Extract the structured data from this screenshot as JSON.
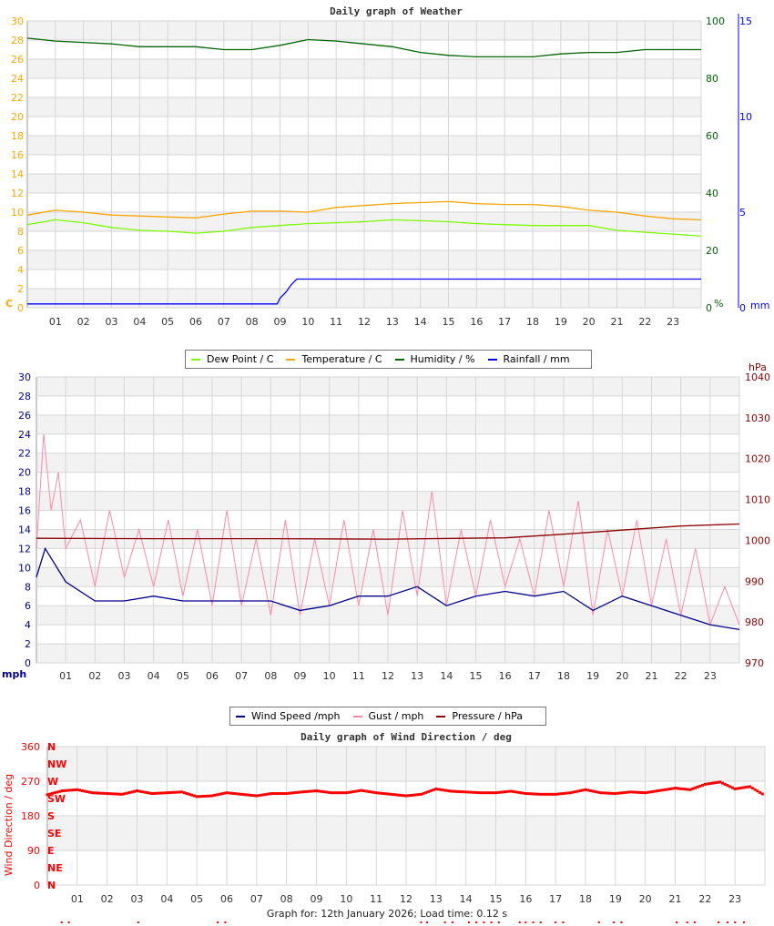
{
  "chart_data": [
    {
      "type": "line",
      "title": "Daily graph of Weather",
      "x_ticks": [
        "01",
        "02",
        "03",
        "04",
        "05",
        "06",
        "07",
        "08",
        "09",
        "10",
        "11",
        "12",
        "13",
        "14",
        "15",
        "16",
        "17",
        "18",
        "19",
        "20",
        "21",
        "22",
        "23"
      ],
      "x_range_hours": [
        0,
        24
      ],
      "grid": true,
      "y_axes": [
        {
          "side": "left",
          "unit": "C",
          "range": [
            0,
            30
          ],
          "ticks": [
            0,
            2,
            4,
            6,
            8,
            10,
            12,
            14,
            16,
            18,
            20,
            22,
            24,
            26,
            28,
            30
          ],
          "color": "#ffa500"
        },
        {
          "side": "right",
          "unit": "%",
          "range": [
            0,
            100
          ],
          "ticks": [
            0,
            20,
            40,
            60,
            80,
            100
          ],
          "color": "#006400"
        },
        {
          "side": "right",
          "unit": "mm",
          "range": [
            0,
            15
          ],
          "ticks": [
            0,
            5,
            10,
            15
          ],
          "color": "#0000ff"
        }
      ],
      "legend": "bottom",
      "series": [
        {
          "name": "Dew Point / C",
          "axis": 0,
          "color": "#7cfc00",
          "x": [
            0,
            1,
            2,
            3,
            4,
            5,
            6,
            7,
            8,
            9,
            10,
            11,
            12,
            13,
            14,
            15,
            16,
            17,
            18,
            19,
            20,
            21,
            22,
            23,
            24
          ],
          "y": [
            8.7,
            9.2,
            8.9,
            8.4,
            8.1,
            8.0,
            7.8,
            8.0,
            8.4,
            8.6,
            8.8,
            8.9,
            9.0,
            9.2,
            9.1,
            9.0,
            8.8,
            8.7,
            8.6,
            8.6,
            8.6,
            8.1,
            7.9,
            7.7,
            7.5
          ]
        },
        {
          "name": "Temperature / C",
          "axis": 0,
          "color": "#ffa500",
          "x": [
            0,
            1,
            2,
            3,
            4,
            5,
            6,
            7,
            8,
            9,
            10,
            11,
            12,
            13,
            14,
            15,
            16,
            17,
            18,
            19,
            20,
            21,
            22,
            23,
            24
          ],
          "y": [
            9.7,
            10.2,
            10.0,
            9.7,
            9.6,
            9.5,
            9.4,
            9.8,
            10.1,
            10.1,
            10.0,
            10.5,
            10.7,
            10.9,
            11.0,
            11.1,
            10.9,
            10.8,
            10.8,
            10.6,
            10.2,
            10.0,
            9.6,
            9.3,
            9.2
          ]
        },
        {
          "name": "Humidity / %",
          "axis": 1,
          "color": "#006400",
          "x": [
            0,
            1,
            2,
            3,
            4,
            5,
            6,
            7,
            8,
            9,
            10,
            11,
            12,
            13,
            14,
            15,
            16,
            17,
            18,
            19,
            20,
            21,
            22,
            23,
            24
          ],
          "y": [
            94,
            93,
            92.5,
            92,
            91,
            91,
            91,
            90,
            90,
            91.5,
            93.5,
            93,
            92,
            91,
            89,
            88,
            87.5,
            87.5,
            87.5,
            88.5,
            89,
            89,
            90,
            90,
            90
          ]
        },
        {
          "name": "Rainfall / mm",
          "axis": 2,
          "color": "#0000ff",
          "x": [
            0,
            8.9,
            9.0,
            9.2,
            9.4,
            9.6,
            24
          ],
          "y": [
            0.2,
            0.2,
            0.5,
            0.8,
            1.2,
            1.5,
            1.5
          ]
        }
      ]
    },
    {
      "type": "line",
      "title": "",
      "x_ticks": [
        "01",
        "02",
        "03",
        "04",
        "05",
        "06",
        "07",
        "08",
        "09",
        "10",
        "11",
        "12",
        "13",
        "14",
        "15",
        "16",
        "17",
        "18",
        "19",
        "20",
        "21",
        "22",
        "23"
      ],
      "x_range_hours": [
        0,
        24
      ],
      "grid": true,
      "y_axes": [
        {
          "side": "left",
          "unit": "mph",
          "range": [
            0,
            30
          ],
          "ticks": [
            0,
            2,
            4,
            6,
            8,
            10,
            12,
            14,
            16,
            18,
            20,
            22,
            24,
            26,
            28,
            30
          ],
          "color": "#00008b"
        },
        {
          "side": "right",
          "unit": "hPa",
          "range": [
            970,
            1040
          ],
          "ticks": [
            970,
            980,
            990,
            1000,
            1010,
            1020,
            1030,
            1040
          ],
          "color": "#8b0000"
        }
      ],
      "legend": "bottom",
      "series": [
        {
          "name": "Gust / mph",
          "axis": 0,
          "color": "#ff88aa",
          "x": [
            0,
            0.25,
            0.5,
            0.75,
            1,
            1.5,
            2,
            2.5,
            3,
            3.5,
            4,
            4.5,
            5,
            5.5,
            6,
            6.5,
            7,
            7.5,
            8,
            8.5,
            9,
            9.5,
            10,
            10.5,
            11,
            11.5,
            12,
            12.5,
            13,
            13.5,
            14,
            14.5,
            15,
            15.5,
            16,
            16.5,
            17,
            17.5,
            18,
            18.5,
            19,
            19.5,
            20,
            20.5,
            21,
            21.5,
            22,
            22.5,
            23,
            23.5,
            24
          ],
          "y": [
            12,
            24,
            16,
            20,
            12,
            15,
            8,
            16,
            9,
            14,
            8,
            15,
            7,
            14,
            6,
            16,
            6,
            13,
            5,
            15,
            5,
            13,
            6,
            15,
            6,
            14,
            5,
            16,
            7,
            18,
            6,
            14,
            7,
            15,
            8,
            13,
            7,
            16,
            8,
            17,
            5,
            14,
            7,
            15,
            6,
            13,
            5,
            12,
            4,
            8,
            4
          ]
        },
        {
          "name": "Wind Speed /mph",
          "axis": 0,
          "color": "#00008b",
          "x": [
            0,
            0.3,
            1,
            2,
            3,
            4,
            5,
            6,
            7,
            8,
            9,
            10,
            11,
            12,
            13,
            14,
            15,
            16,
            17,
            18,
            19,
            20,
            21,
            22,
            23,
            24
          ],
          "y": [
            9,
            12,
            8.5,
            6.5,
            6.5,
            7,
            6.5,
            6.5,
            6.5,
            6.5,
            5.5,
            6,
            7,
            7,
            8,
            6,
            7,
            7.5,
            7,
            7.5,
            5.5,
            7,
            6,
            5,
            4,
            3.5
          ]
        },
        {
          "name": "Pressure / hPa",
          "axis": 1,
          "color": "#8b0000",
          "x": [
            0,
            4,
            8,
            12,
            16,
            18,
            20,
            22,
            24
          ],
          "y": [
            1000.5,
            1000.4,
            1000.4,
            1000.3,
            1000.6,
            1001.5,
            1002.5,
            1003.5,
            1004
          ]
        }
      ]
    },
    {
      "type": "scatter",
      "title": "Daily graph of Wind Direction / deg",
      "ylabel": "Wind Direction / deg",
      "x_ticks": [
        "01",
        "02",
        "03",
        "04",
        "05",
        "06",
        "07",
        "08",
        "09",
        "10",
        "11",
        "12",
        "13",
        "14",
        "15",
        "16",
        "17",
        "18",
        "19",
        "20",
        "21",
        "22",
        "23"
      ],
      "x_range_hours": [
        0,
        24
      ],
      "grid": true,
      "y_axes": [
        {
          "side": "left",
          "range": [
            0,
            360
          ],
          "ticks": [
            0,
            90,
            180,
            270,
            360
          ],
          "color": "#ff0000"
        }
      ],
      "compass_labels": [
        "N",
        "NE",
        "E",
        "SE",
        "S",
        "SW",
        "W",
        "NW",
        "N"
      ],
      "series": [
        {
          "axis": 0,
          "color": "#ff0000",
          "x": [
            0,
            0.5,
            1,
            1.5,
            2,
            2.5,
            3,
            3.5,
            4,
            4.5,
            5,
            5.5,
            6,
            6.5,
            7,
            7.5,
            8,
            8.5,
            9,
            9.5,
            10,
            10.5,
            11,
            11.5,
            12,
            12.5,
            13,
            13.5,
            14,
            14.5,
            15,
            15.5,
            16,
            16.5,
            17,
            17.5,
            18,
            18.5,
            19,
            19.5,
            20,
            20.5,
            21,
            21.5,
            22,
            22.5,
            23,
            23.5,
            24
          ],
          "y": [
            235,
            245,
            248,
            240,
            238,
            236,
            245,
            238,
            240,
            242,
            230,
            232,
            240,
            236,
            232,
            238,
            238,
            242,
            245,
            240,
            240,
            246,
            240,
            236,
            232,
            236,
            250,
            244,
            242,
            240,
            240,
            244,
            238,
            236,
            236,
            240,
            248,
            240,
            238,
            242,
            240,
            246,
            252,
            248,
            262,
            268,
            250,
            256,
            233
          ]
        }
      ],
      "calm_markers_hours": [
        0.48,
        0.72,
        3.04,
        5.7,
        5.95,
        12.5,
        12.7,
        13.3,
        13.55,
        14.1,
        14.35,
        14.6,
        14.85,
        15.1,
        15.8,
        16.0,
        16.25,
        16.5,
        17.0,
        17.25,
        18.45,
        18.95,
        19.2,
        21.05,
        21.4,
        21.65,
        22.45,
        22.75,
        23.0,
        23.3
      ]
    }
  ],
  "legends": [
    {
      "items": [
        {
          "label": "Dew Point / C",
          "color": "#7cfc00"
        },
        {
          "label": "Temperature / C",
          "color": "#ffa500"
        },
        {
          "label": "Humidity / %",
          "color": "#006400"
        },
        {
          "label": "Rainfall / mm",
          "color": "#0000ff"
        }
      ]
    },
    {
      "items": [
        {
          "label": "Wind Speed /mph",
          "color": "#00008b"
        },
        {
          "label": "Gust / mph",
          "color": "#ff88aa"
        },
        {
          "label": "Pressure / hPa",
          "color": "#8b0000"
        }
      ]
    }
  ],
  "footer": "Graph for: 12th January 2026; Load time: 0.12 s"
}
